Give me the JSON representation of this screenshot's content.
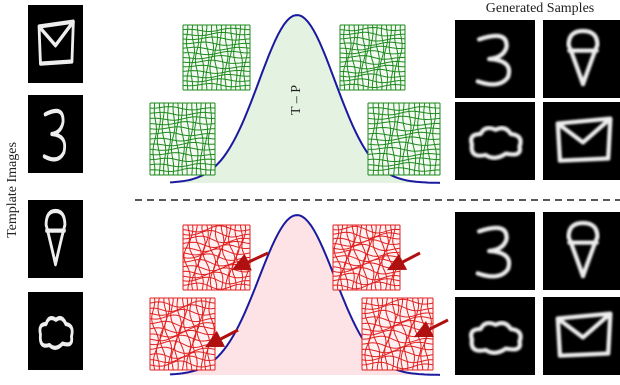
{
  "header": {
    "title": "Generated Samples"
  },
  "side_label": "Template Images",
  "curve_label": "T – P"
}
